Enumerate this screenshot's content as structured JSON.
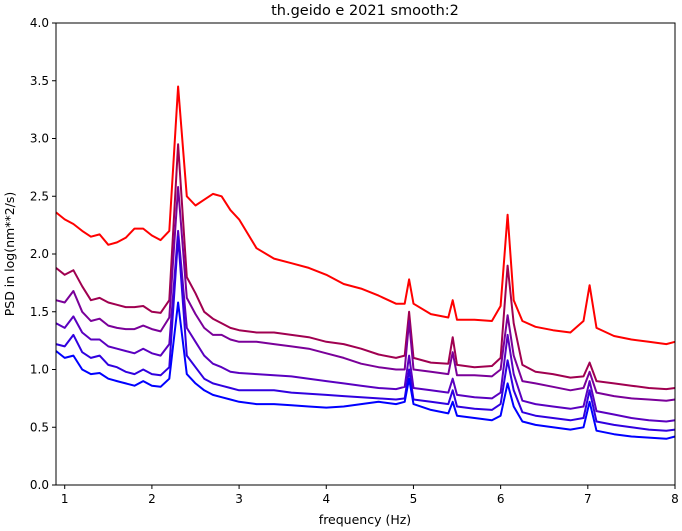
{
  "chart_data": {
    "type": "line",
    "title": "th.geido e 2021 smooth:2",
    "xlabel": "frequency (Hz)",
    "ylabel": "PSD in log(nm**2/s)",
    "xlim": [
      0.9,
      8.0
    ],
    "ylim": [
      0.0,
      4.0
    ],
    "xticks": [
      "1",
      "2",
      "3",
      "4",
      "5",
      "6",
      "7",
      "8"
    ],
    "yticks": [
      "0.0",
      "0.5",
      "1.0",
      "1.5",
      "2.0",
      "2.5",
      "3.0",
      "3.5",
      "4.0"
    ],
    "grid": false,
    "legend": false,
    "x": [
      0.9,
      1.0,
      1.1,
      1.2,
      1.3,
      1.4,
      1.5,
      1.6,
      1.7,
      1.8,
      1.9,
      2.0,
      2.1,
      2.2,
      2.3,
      2.4,
      2.5,
      2.6,
      2.7,
      2.8,
      2.9,
      3.0,
      3.2,
      3.4,
      3.6,
      3.8,
      4.0,
      4.2,
      4.4,
      4.6,
      4.8,
      4.9,
      4.95,
      5.0,
      5.2,
      5.4,
      5.45,
      5.5,
      5.7,
      5.9,
      6.0,
      6.08,
      6.15,
      6.25,
      6.4,
      6.6,
      6.8,
      6.95,
      7.02,
      7.1,
      7.3,
      7.5,
      7.7,
      7.9,
      8.0
    ],
    "series": [
      {
        "color": "#ff0000",
        "values": [
          2.36,
          2.3,
          2.26,
          2.2,
          2.15,
          2.17,
          2.08,
          2.1,
          2.14,
          2.22,
          2.22,
          2.16,
          2.12,
          2.2,
          3.45,
          2.5,
          2.42,
          2.47,
          2.52,
          2.5,
          2.38,
          2.3,
          2.05,
          1.96,
          1.92,
          1.88,
          1.82,
          1.74,
          1.7,
          1.64,
          1.57,
          1.57,
          1.78,
          1.57,
          1.48,
          1.45,
          1.6,
          1.43,
          1.43,
          1.42,
          1.55,
          2.34,
          1.6,
          1.42,
          1.37,
          1.34,
          1.32,
          1.42,
          1.73,
          1.36,
          1.29,
          1.26,
          1.24,
          1.22,
          1.24
        ]
      },
      {
        "color": "#a00050",
        "values": [
          1.88,
          1.82,
          1.86,
          1.72,
          1.6,
          1.62,
          1.58,
          1.56,
          1.54,
          1.54,
          1.55,
          1.5,
          1.49,
          1.6,
          2.95,
          1.8,
          1.66,
          1.5,
          1.44,
          1.4,
          1.36,
          1.34,
          1.32,
          1.32,
          1.3,
          1.28,
          1.24,
          1.22,
          1.18,
          1.13,
          1.1,
          1.12,
          1.5,
          1.1,
          1.06,
          1.05,
          1.28,
          1.04,
          1.02,
          1.03,
          1.1,
          1.9,
          1.4,
          1.04,
          0.98,
          0.96,
          0.93,
          0.94,
          1.06,
          0.9,
          0.88,
          0.86,
          0.84,
          0.83,
          0.84
        ]
      },
      {
        "color": "#7a0099",
        "values": [
          1.6,
          1.58,
          1.68,
          1.5,
          1.42,
          1.44,
          1.38,
          1.36,
          1.35,
          1.35,
          1.38,
          1.35,
          1.33,
          1.45,
          2.58,
          1.62,
          1.48,
          1.36,
          1.3,
          1.3,
          1.26,
          1.24,
          1.24,
          1.22,
          1.2,
          1.18,
          1.14,
          1.1,
          1.05,
          1.02,
          1.0,
          1.0,
          1.42,
          1.0,
          0.98,
          0.96,
          1.15,
          0.95,
          0.95,
          0.94,
          1.0,
          1.47,
          1.12,
          0.9,
          0.88,
          0.85,
          0.82,
          0.84,
          0.98,
          0.8,
          0.77,
          0.75,
          0.74,
          0.73,
          0.74
        ]
      },
      {
        "color": "#5a00c0",
        "values": [
          1.4,
          1.36,
          1.46,
          1.32,
          1.26,
          1.26,
          1.2,
          1.18,
          1.16,
          1.14,
          1.18,
          1.14,
          1.12,
          1.22,
          2.2,
          1.36,
          1.24,
          1.12,
          1.05,
          1.02,
          0.98,
          0.97,
          0.96,
          0.95,
          0.94,
          0.92,
          0.9,
          0.88,
          0.86,
          0.84,
          0.83,
          0.85,
          1.12,
          0.84,
          0.82,
          0.8,
          0.92,
          0.78,
          0.76,
          0.75,
          0.8,
          1.3,
          0.96,
          0.73,
          0.7,
          0.68,
          0.66,
          0.68,
          0.9,
          0.64,
          0.61,
          0.58,
          0.56,
          0.55,
          0.56
        ]
      },
      {
        "color": "#3000e0",
        "values": [
          1.22,
          1.2,
          1.3,
          1.15,
          1.1,
          1.12,
          1.04,
          1.02,
          0.98,
          0.96,
          1.0,
          0.96,
          0.95,
          1.02,
          2.15,
          1.12,
          1.02,
          0.92,
          0.88,
          0.86,
          0.84,
          0.82,
          0.82,
          0.82,
          0.8,
          0.79,
          0.78,
          0.77,
          0.76,
          0.75,
          0.74,
          0.75,
          1.0,
          0.74,
          0.72,
          0.7,
          0.82,
          0.68,
          0.66,
          0.65,
          0.7,
          1.08,
          0.82,
          0.63,
          0.6,
          0.58,
          0.56,
          0.58,
          0.82,
          0.55,
          0.52,
          0.5,
          0.48,
          0.47,
          0.48
        ]
      },
      {
        "color": "#0000ff",
        "values": [
          1.16,
          1.1,
          1.12,
          1.0,
          0.96,
          0.97,
          0.92,
          0.9,
          0.88,
          0.86,
          0.9,
          0.86,
          0.85,
          0.92,
          1.58,
          0.96,
          0.88,
          0.82,
          0.78,
          0.76,
          0.74,
          0.72,
          0.7,
          0.7,
          0.69,
          0.68,
          0.67,
          0.68,
          0.7,
          0.72,
          0.7,
          0.72,
          0.92,
          0.7,
          0.65,
          0.62,
          0.72,
          0.6,
          0.58,
          0.56,
          0.6,
          0.88,
          0.68,
          0.55,
          0.52,
          0.5,
          0.48,
          0.5,
          0.72,
          0.47,
          0.44,
          0.42,
          0.41,
          0.4,
          0.42
        ]
      }
    ]
  }
}
